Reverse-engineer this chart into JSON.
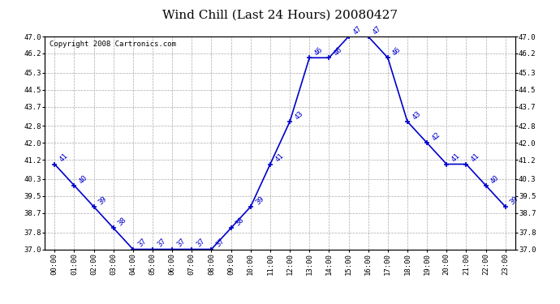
{
  "title": "Wind Chill (Last 24 Hours) 20080427",
  "copyright": "Copyright 2008 Cartronics.com",
  "hours": [
    "00:00",
    "01:00",
    "02:00",
    "03:00",
    "04:00",
    "05:00",
    "06:00",
    "07:00",
    "08:00",
    "09:00",
    "10:00",
    "11:00",
    "12:00",
    "13:00",
    "14:00",
    "15:00",
    "16:00",
    "17:00",
    "18:00",
    "19:00",
    "20:00",
    "21:00",
    "22:00",
    "23:00"
  ],
  "values": [
    41,
    40,
    39,
    38,
    37,
    37,
    37,
    37,
    37,
    38,
    39,
    41,
    43,
    46,
    46,
    47,
    47,
    46,
    43,
    42,
    41,
    41,
    40,
    39
  ],
  "ylim": [
    37.0,
    47.0
  ],
  "yticks": [
    37.0,
    37.8,
    38.7,
    39.5,
    40.3,
    41.2,
    42.0,
    42.8,
    43.7,
    44.5,
    45.3,
    46.2,
    47.0
  ],
  "line_color": "#0000cc",
  "marker_color": "#0000cc",
  "bg_color": "#ffffff",
  "grid_color": "#aaaaaa",
  "text_color": "#000000",
  "title_fontsize": 11,
  "label_fontsize": 6.5,
  "tick_fontsize": 6.5,
  "copyright_fontsize": 6.5
}
